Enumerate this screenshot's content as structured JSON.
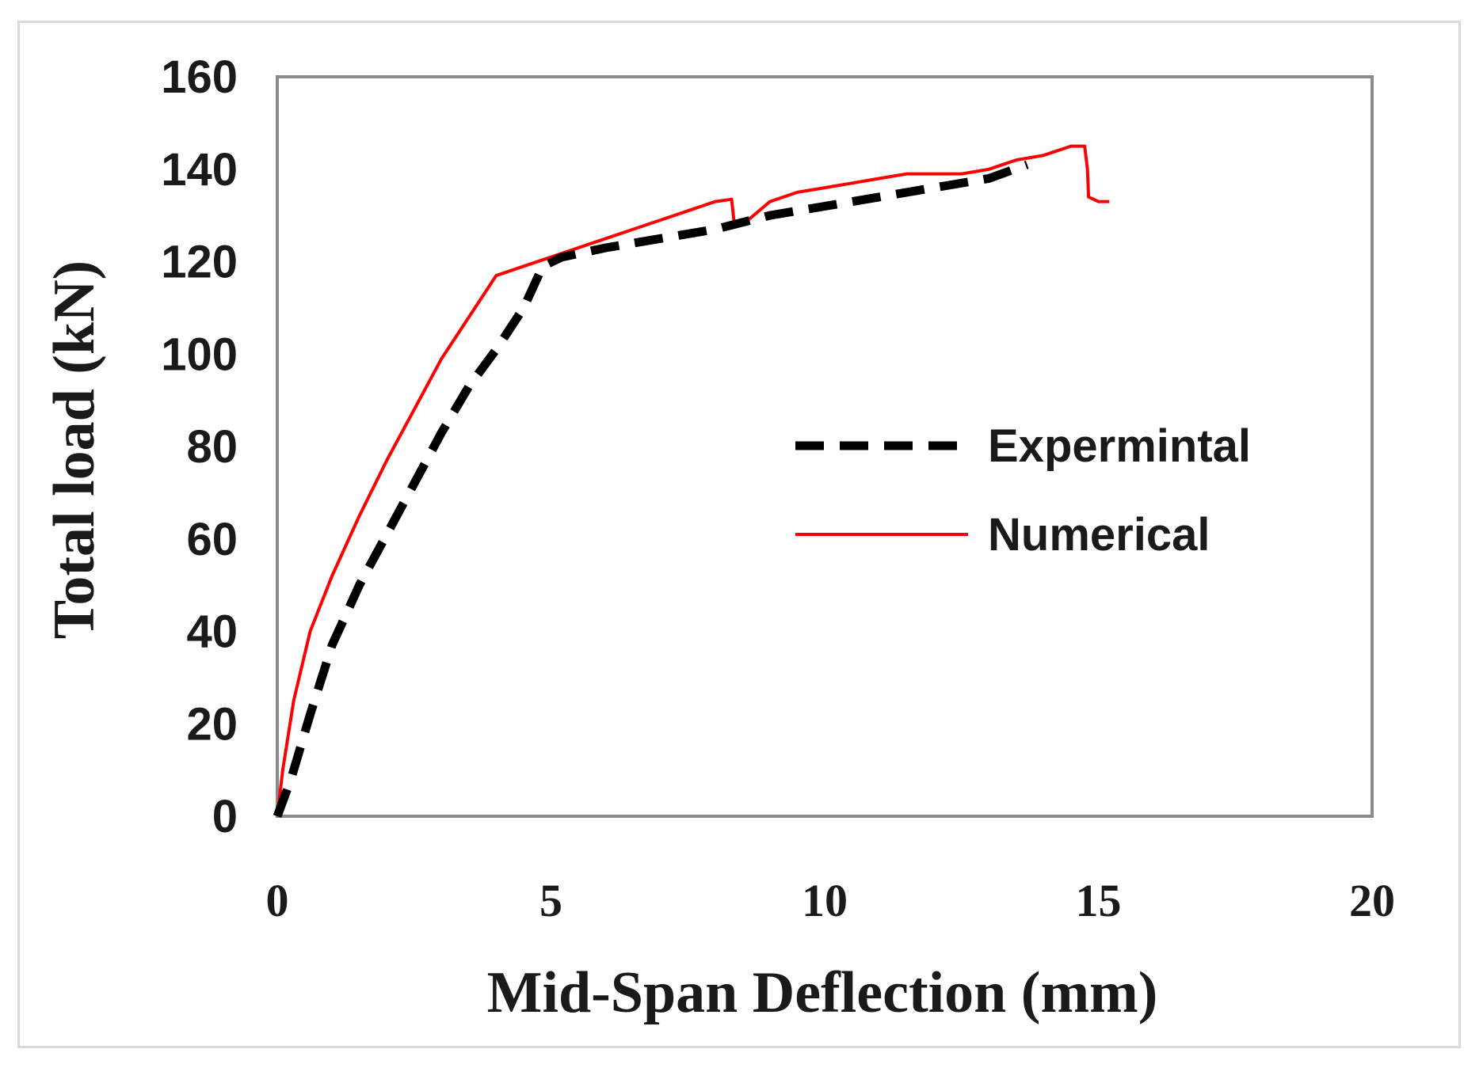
{
  "chart_data": {
    "type": "line",
    "title": "",
    "xlabel": "Mid-Span Deflection (mm)",
    "ylabel": "Total load (kN)",
    "xlim": [
      0,
      20
    ],
    "ylim": [
      0,
      160
    ],
    "xticks": [
      "0",
      "5",
      "10",
      "15",
      "20"
    ],
    "yticks": [
      "0",
      "20",
      "40",
      "60",
      "80",
      "100",
      "120",
      "140",
      "160"
    ],
    "grid": false,
    "legend_position": "center-right",
    "series": [
      {
        "name": "Expermintal",
        "style": "dashed",
        "color": "#000000",
        "x": [
          0,
          0.25,
          0.6,
          1.0,
          1.5,
          2.0,
          2.5,
          3.0,
          3.5,
          4.0,
          4.5,
          4.85,
          5.2,
          6.0,
          7.0,
          8.0,
          9.0,
          10.0,
          11.0,
          12.0,
          13.0,
          13.7
        ],
        "y": [
          0,
          8,
          22,
          37,
          50,
          61,
          72,
          83,
          93,
          101,
          110,
          119,
          121,
          123,
          125,
          127,
          130,
          132,
          134,
          136,
          138,
          141
        ]
      },
      {
        "name": "Numerical",
        "style": "solid",
        "color": "#ff0000",
        "x": [
          0,
          0.1,
          0.3,
          0.6,
          1.0,
          1.5,
          2.0,
          2.5,
          3.0,
          3.5,
          4.0,
          4.5,
          5.0,
          5.5,
          6.0,
          6.5,
          7.0,
          7.5,
          8.0,
          8.3,
          8.35,
          8.4,
          8.6,
          9.0,
          9.5,
          10.0,
          10.5,
          11.0,
          11.5,
          12.0,
          12.5,
          13.0,
          13.5,
          14.0,
          14.5,
          14.75,
          14.8,
          14.82,
          15.0,
          15.2
        ],
        "y": [
          0,
          10,
          25,
          40,
          52,
          65,
          77,
          88,
          99,
          108,
          117,
          119,
          121,
          123,
          125,
          127,
          129,
          131,
          133,
          133.5,
          128,
          128,
          129,
          133,
          135,
          136,
          137,
          138,
          139,
          139,
          139,
          140,
          142,
          143,
          145,
          145,
          140,
          134,
          133,
          133
        ]
      }
    ]
  }
}
